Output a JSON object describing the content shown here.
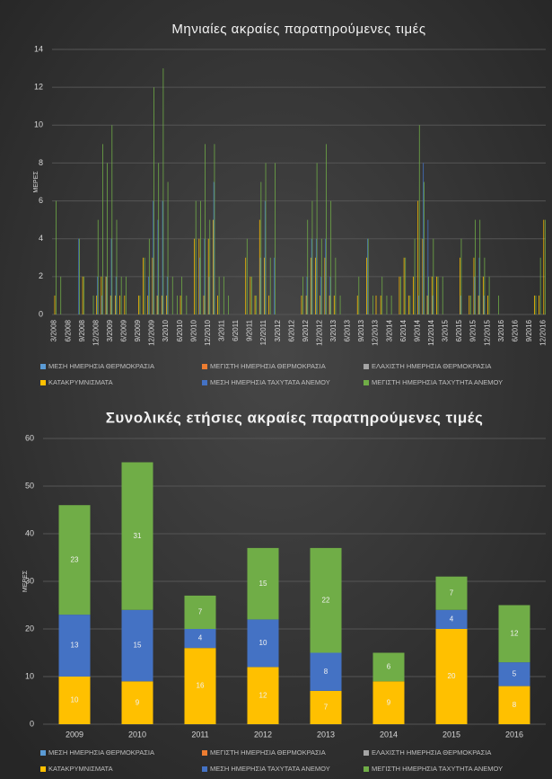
{
  "chart_data": [
    {
      "type": "bar",
      "stacked": false,
      "title": "Μηνιαίες ακραίες παρατηρούμενες τιμές",
      "y_label": "ΜΕΡΕΣ",
      "ylim": [
        0,
        14
      ],
      "yticks": [
        0,
        2,
        4,
        6,
        8,
        10,
        12,
        14
      ],
      "grid": true,
      "categories": [
        "3/2008",
        null,
        null,
        "6/2008",
        null,
        null,
        "9/2008",
        null,
        null,
        "12/2008",
        null,
        null,
        "3/2009",
        null,
        null,
        "6/2009",
        null,
        null,
        "9/2009",
        null,
        null,
        "12/2009",
        null,
        null,
        "3/2010",
        null,
        null,
        "6/2010",
        null,
        null,
        "9/2010",
        null,
        null,
        "12/2010",
        null,
        null,
        "3/2011",
        null,
        null,
        "6/2011",
        null,
        null,
        "9/2011",
        null,
        null,
        "12/2011",
        null,
        null,
        "3/2012",
        null,
        null,
        "6/2012",
        null,
        null,
        "9/2012",
        null,
        null,
        "12/2012",
        null,
        null,
        "3/2013",
        null,
        null,
        "6/2013",
        null,
        null,
        "9/2013",
        null,
        null,
        "12/2013",
        null,
        null,
        "3/2014",
        null,
        null,
        "6/2014",
        null,
        null,
        "9/2014",
        null,
        null,
        "12/2014",
        null,
        null,
        "3/2015",
        null,
        null,
        "6/2015",
        null,
        null,
        "9/2015",
        null,
        null,
        "12/2015",
        null,
        null,
        "3/2016",
        null,
        null,
        "6/2016",
        null,
        null,
        "9/2016",
        null,
        null,
        "12/2016"
      ],
      "series": [
        {
          "name": "ΜΕΣΗ ΗΜΕΡΗΣΙΑ ΘΕΡΜΟΚΡΑΣΙΑ",
          "color": "#5b9bd5",
          "values": [
            0,
            0,
            0,
            0,
            0,
            0,
            0,
            0,
            0,
            0,
            0,
            0,
            0,
            0,
            0,
            0,
            0,
            0,
            0,
            0,
            0,
            0,
            0,
            0,
            0,
            0,
            0,
            0,
            0,
            0,
            0,
            0,
            0,
            0,
            0,
            0,
            0,
            0,
            0,
            0,
            0,
            0,
            0,
            0,
            0,
            0,
            0,
            0,
            0,
            0,
            0,
            0,
            0,
            0,
            0,
            0,
            0,
            0,
            0,
            0,
            0,
            0,
            0,
            0,
            0,
            0,
            0,
            0,
            0,
            0,
            0,
            0,
            0,
            0,
            0,
            0,
            0,
            0,
            0,
            0,
            0,
            0,
            0,
            0,
            0,
            0,
            0,
            0,
            0,
            0,
            0,
            0,
            0,
            0,
            0,
            0,
            0,
            0,
            0,
            0,
            0,
            0,
            0,
            0,
            0,
            0
          ]
        },
        {
          "name": "ΜΕΓΙΣΤΗ ΗΜΕΡΗΣΙΑ ΘΕΡΜΟΚΡΑΣΙΑ",
          "color": "#ed7d31",
          "values": [
            0,
            0,
            0,
            0,
            0,
            0,
            0,
            0,
            0,
            0,
            0,
            0,
            0,
            0,
            0,
            0,
            0,
            0,
            0,
            0,
            0,
            0,
            0,
            0,
            0,
            0,
            0,
            0,
            0,
            0,
            0,
            0,
            0,
            0,
            0,
            0,
            0,
            0,
            0,
            0,
            0,
            0,
            0,
            0,
            0,
            0,
            0,
            0,
            0,
            0,
            0,
            0,
            0,
            0,
            0,
            0,
            0,
            0,
            0,
            0,
            0,
            0,
            0,
            0,
            0,
            0,
            0,
            0,
            0,
            0,
            0,
            0,
            0,
            0,
            0,
            0,
            0,
            0,
            0,
            0,
            0,
            0,
            0,
            0,
            0,
            0,
            0,
            0,
            0,
            0,
            0,
            0,
            0,
            0,
            0,
            0,
            0,
            0,
            0,
            0,
            0,
            0,
            0,
            0,
            0,
            0
          ]
        },
        {
          "name": "ΕΛΑΧΙΣΤΗ ΗΜΕΡΗΣΙΑ ΘΕΡΜΟΚΡΑΣΙΑ",
          "color": "#a5a5a5",
          "values": [
            0,
            0,
            0,
            0,
            0,
            0,
            0,
            0,
            0,
            0,
            0,
            0,
            0,
            0,
            0,
            0,
            0,
            0,
            0,
            0,
            0,
            0,
            0,
            0,
            0,
            0,
            0,
            0,
            0,
            0,
            0,
            0,
            0,
            0,
            0,
            0,
            0,
            0,
            0,
            0,
            0,
            0,
            0,
            0,
            0,
            0,
            0,
            0,
            0,
            0,
            0,
            0,
            0,
            0,
            0,
            0,
            0,
            0,
            0,
            0,
            0,
            0,
            0,
            0,
            0,
            0,
            0,
            0,
            0,
            0,
            0,
            0,
            0,
            0,
            0,
            0,
            0,
            0,
            0,
            0,
            0,
            0,
            0,
            0,
            0,
            0,
            0,
            0,
            0,
            0,
            0,
            0,
            0,
            0,
            0,
            0,
            0,
            0,
            0,
            0,
            0,
            0,
            0,
            0,
            0,
            0
          ]
        },
        {
          "name": "ΚΑΤΑΚΡΥΜΝΙΣΜΑΤΑ",
          "color": "#ffc000",
          "values": [
            1,
            0,
            0,
            0,
            0,
            0,
            2,
            0,
            0,
            1,
            2,
            2,
            1,
            1,
            1,
            1,
            0,
            0,
            1,
            3,
            1,
            3,
            1,
            1,
            1,
            0,
            0,
            1,
            0,
            0,
            4,
            4,
            1,
            4,
            5,
            1,
            0,
            0,
            0,
            0,
            0,
            3,
            2,
            1,
            5,
            3,
            1,
            0,
            0,
            0,
            0,
            0,
            0,
            1,
            1,
            3,
            3,
            1,
            3,
            1,
            1,
            0,
            0,
            0,
            0,
            1,
            0,
            3,
            0,
            1,
            1,
            0,
            0,
            0,
            2,
            3,
            1,
            2,
            6,
            4,
            1,
            2,
            2,
            0,
            0,
            0,
            0,
            3,
            0,
            1,
            3,
            1,
            2,
            1,
            0,
            0,
            0,
            0,
            0,
            0,
            0,
            0,
            0,
            1,
            1,
            5
          ]
        },
        {
          "name": "ΜΕΣΗ ΗΜΕΡΗΣΙΑ ΤΑΧΥΤΑΤΑ ΑΝΕΜΟΥ",
          "color": "#4472c4",
          "values": [
            0,
            0,
            0,
            0,
            0,
            4,
            0,
            0,
            0,
            2,
            1,
            2,
            4,
            2,
            0,
            0,
            0,
            0,
            0,
            0,
            2,
            6,
            5,
            6,
            2,
            0,
            0,
            0,
            0,
            0,
            0,
            3,
            4,
            2,
            7,
            0,
            0,
            0,
            0,
            0,
            0,
            0,
            0,
            0,
            3,
            6,
            0,
            3,
            0,
            0,
            0,
            0,
            0,
            0,
            2,
            4,
            4,
            2,
            4,
            2,
            0,
            0,
            0,
            0,
            0,
            0,
            0,
            4,
            0,
            0,
            0,
            0,
            0,
            0,
            0,
            0,
            0,
            0,
            1,
            8,
            5,
            1,
            0,
            0,
            0,
            0,
            0,
            1,
            0,
            0,
            2,
            3,
            1,
            0,
            0,
            0,
            0,
            0,
            0,
            0,
            0,
            0,
            0,
            0,
            0,
            0
          ]
        },
        {
          "name": "ΜΕΓΙΣΤΗ ΗΜΕΡΗΣΙΑ ΤΑΧΥΤΗΤΑ ΑΝΕΜΟΥ",
          "color": "#70ad47",
          "values": [
            6,
            2,
            0,
            0,
            0,
            4,
            2,
            0,
            1,
            5,
            9,
            8,
            10,
            5,
            2,
            2,
            0,
            0,
            1,
            3,
            4,
            12,
            8,
            13,
            7,
            2,
            1,
            2,
            1,
            0,
            6,
            6,
            9,
            5,
            9,
            2,
            2,
            1,
            0,
            0,
            0,
            4,
            2,
            1,
            7,
            8,
            3,
            8,
            0,
            0,
            0,
            0,
            0,
            2,
            5,
            6,
            8,
            4,
            9,
            6,
            3,
            1,
            0,
            0,
            0,
            2,
            0,
            4,
            1,
            0,
            2,
            1,
            1,
            0,
            2,
            3,
            1,
            4,
            10,
            7,
            2,
            4,
            2,
            2,
            0,
            0,
            0,
            4,
            0,
            1,
            5,
            5,
            3,
            2,
            0,
            1,
            0,
            0,
            0,
            0,
            0,
            0,
            0,
            1,
            3,
            5
          ]
        }
      ]
    },
    {
      "type": "bar",
      "stacked": true,
      "title": "Συνολικές ετήσιες ακραίες παρατηρούμενες τιμές",
      "y_label": "ΜΕΡΕΣ",
      "ylim": [
        0,
        60
      ],
      "yticks": [
        0,
        10,
        20,
        30,
        40,
        50,
        60
      ],
      "grid": true,
      "categories": [
        "2009",
        "2010",
        "2011",
        "2012",
        "2013",
        "2014",
        "2015",
        "2016"
      ],
      "series": [
        {
          "name": "ΜΕΣΗ ΗΜΕΡΗΣΙΑ ΘΕΡΜΟΚΡΑΣΙΑ",
          "color": "#5b9bd5",
          "values": [
            0,
            0,
            0,
            0,
            0,
            0,
            0,
            0
          ]
        },
        {
          "name": "ΜΕΓΙΣΤΗ ΗΜΕΡΗΣΙΑ ΘΕΡΜΟΚΡΑΣΙΑ",
          "color": "#ed7d31",
          "values": [
            0,
            0,
            0,
            0,
            0,
            0,
            0,
            0
          ]
        },
        {
          "name": "ΕΛΑΧΙΣΤΗ ΗΜΕΡΗΣΙΑ ΘΕΡΜΟΚΡΑΣΙΑ",
          "color": "#a5a5a5",
          "values": [
            0,
            0,
            0,
            0,
            0,
            0,
            0,
            0
          ]
        },
        {
          "name": "ΚΑΤΑΚΡΥΜΝΙΣΜΑΤΑ",
          "color": "#ffc000",
          "values": [
            10,
            9,
            16,
            12,
            7,
            9,
            20,
            8
          ]
        },
        {
          "name": "ΜΕΣΗ ΗΜΕΡΗΣΙΑ ΤΑΧΥΤΑΤΑ ΑΝΕΜΟΥ",
          "color": "#4472c4",
          "values": [
            13,
            15,
            4,
            10,
            8,
            0,
            4,
            5
          ]
        },
        {
          "name": "ΜΕΓΙΣΤΗ ΗΜΕΡΗΣΙΑ ΤΑΧΥΤΗΤΑ ΑΝΕΜΟΥ",
          "color": "#70ad47",
          "values": [
            23,
            31,
            7,
            15,
            22,
            6,
            7,
            12
          ]
        }
      ]
    }
  ]
}
